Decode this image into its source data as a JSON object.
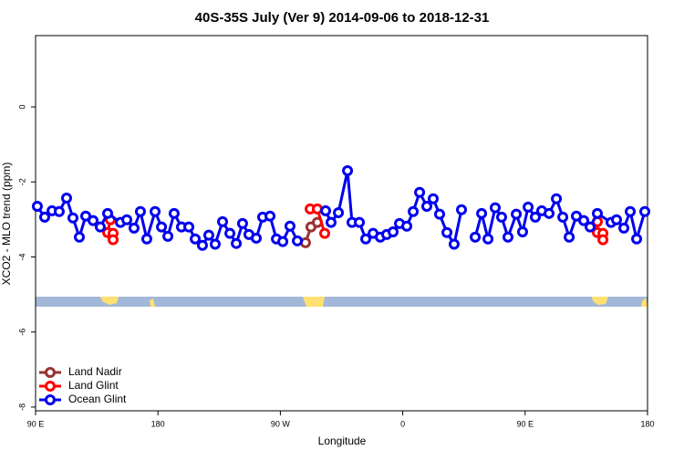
{
  "chart_data": {
    "type": "line",
    "title": "40S-35S July (Ver 9)   2014-09-06 to 2018-12-31",
    "x_label": "Longitude",
    "y_label": "XCO2 - MLO trend (ppm)",
    "xlim": [
      90,
      540
    ],
    "ylim": [
      -8.1,
      1.9
    ],
    "xticks": [
      {
        "value": 90,
        "label": "90 E"
      },
      180,
      {
        "value": 270,
        "label": "90 W"
      },
      {
        "value": 360,
        "label": "0"
      },
      {
        "value": 450,
        "label": "90 E"
      },
      {
        "value": 540,
        "label": "180"
      }
    ],
    "yticks": [
      0,
      -2,
      -4,
      -6,
      -8
    ],
    "legend": "bottom-left",
    "series": [
      {
        "name": "Land Nadir",
        "color": "#993333",
        "x": [
          288.5,
          292.5,
          297.2
        ],
        "values": [
          -3.62,
          -3.2,
          -3.08
        ]
      },
      {
        "name": "Land Glint",
        "color": "#ff0000",
        "x": [
          145.0,
          143.0,
          147.0,
          147.0,
          290,
          291.9,
          297.2,
          302.6,
          450,
          503.1,
          503.1,
          507.2,
          507.2
        ],
        "values": [
          -3.01,
          -3.35,
          -3.37,
          -3.54,
          null,
          -2.72,
          -2.72,
          -3.37,
          null,
          -3.06,
          -3.35,
          -3.37,
          -3.54
        ]
      },
      {
        "name": "Ocean Glint",
        "color": "#0000ee",
        "x": [
          91.3,
          96.7,
          102.1,
          107.4,
          112.8,
          117.5,
          122.2,
          126.9,
          132.3,
          137.6,
          143.0,
          152.4,
          157.1,
          162.4,
          167.1,
          171.8,
          177.9,
          182.6,
          187.3,
          191.9,
          197.3,
          202.7,
          207.4,
          212.7,
          217.4,
          222.1,
          227.5,
          232.9,
          237.6,
          242.2,
          246.9,
          252.3,
          257.0,
          262.4,
          267.1,
          271.8,
          277.1,
          282.5,
          292,
          303.3,
          307.3,
          312.7,
          319.4,
          322.7,
          328.1,
          332.8,
          338.2,
          343.5,
          348.2,
          352.9,
          357.6,
          363.0,
          367.7,
          372.4,
          377.7,
          382.4,
          387.1,
          392.5,
          397.8,
          403.2,
          408,
          413.3,
          418.0,
          422.7,
          428.0,
          432.7,
          437.4,
          443.5,
          448.1,
          452.2,
          457.5,
          462.2,
          467.6,
          473.0,
          477.7,
          482.4,
          487.7,
          493.1,
          497.8,
          503.1,
          513.2,
          517.2,
          522.6,
          527.3,
          532.0,
          538.0
        ],
        "values": [
          -2.65,
          -2.94,
          -2.77,
          -2.79,
          -2.43,
          -2.96,
          -3.47,
          -2.91,
          -3.03,
          -3.2,
          -2.84,
          -3.08,
          -3.01,
          -3.23,
          -2.79,
          -3.52,
          -2.79,
          -3.2,
          -3.45,
          -2.84,
          -3.2,
          -3.2,
          -3.52,
          -3.69,
          -3.42,
          -3.66,
          -3.06,
          -3.37,
          -3.64,
          -3.11,
          -3.4,
          -3.5,
          -2.94,
          -2.91,
          -3.52,
          -3.59,
          -3.18,
          -3.57,
          null,
          -2.77,
          -3.08,
          -2.82,
          -1.7,
          -3.08,
          -3.08,
          -3.52,
          -3.37,
          -3.47,
          -3.4,
          -3.33,
          -3.11,
          -3.18,
          -2.79,
          -2.28,
          -2.65,
          -2.45,
          -2.86,
          -3.35,
          -3.66,
          -2.74,
          null,
          -3.47,
          -2.84,
          -3.52,
          -2.69,
          -2.94,
          -3.47,
          -2.86,
          -3.33,
          -2.67,
          -2.94,
          -2.77,
          -2.84,
          -2.45,
          -2.94,
          -3.47,
          -2.91,
          -3.03,
          -3.2,
          -2.84,
          -3.08,
          -3.01,
          -3.23,
          -2.79,
          -3.52,
          -2.79
        ]
      }
    ]
  }
}
